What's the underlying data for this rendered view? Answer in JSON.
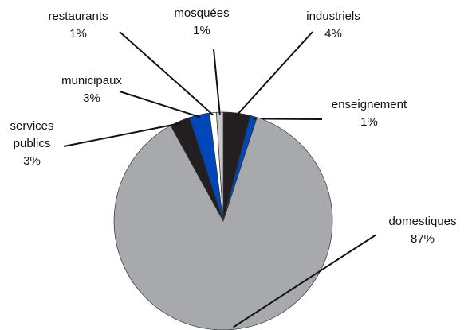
{
  "chart_data": {
    "type": "pie",
    "categories": [
      "industriels",
      "enseignement",
      "domestiques",
      "services publics",
      "municipaux",
      "restaurants",
      "mosquées"
    ],
    "values": [
      4,
      1,
      87,
      3,
      3,
      1,
      1
    ],
    "value_labels": [
      "4%",
      "1%",
      "87%",
      "3%",
      "3%",
      "1%",
      "1%"
    ],
    "colors": [
      "#231f20",
      "#0047bb",
      "#a7a9ac",
      "#231f20",
      "#0047bb",
      "#ffffff",
      "#c8c9cb"
    ]
  }
}
